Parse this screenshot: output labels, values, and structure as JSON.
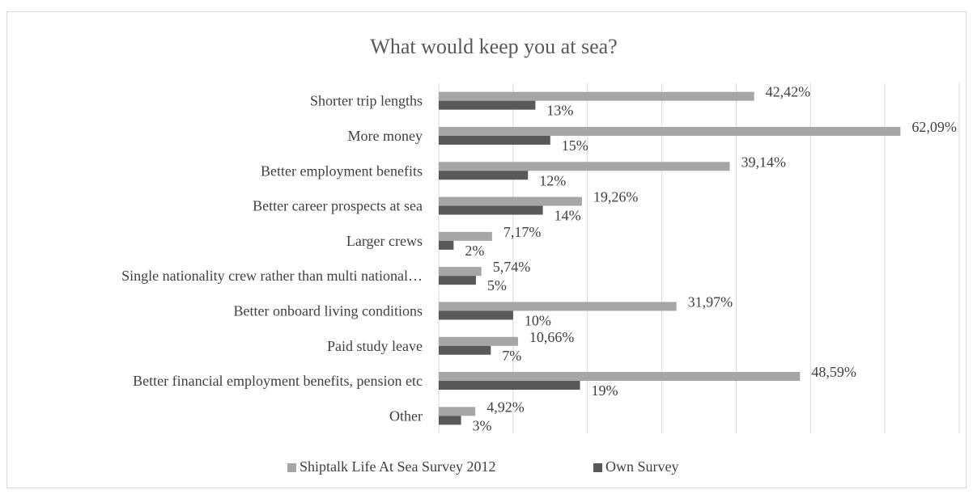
{
  "chart_data": {
    "type": "bar",
    "orientation": "horizontal",
    "title": "What would keep you at sea?",
    "xlabel": "",
    "ylabel": "",
    "xlim": [
      0,
      70
    ],
    "grid": true,
    "legend_position": "bottom",
    "categories": [
      "Shorter trip lengths",
      "More money",
      "Better employment benefits",
      "Better career prospects at sea",
      "Larger crews",
      "Single nationality crew rather than multi national…",
      "Better onboard living conditions",
      "Paid study leave",
      "Better financial employment benefits, pension etc",
      "Other"
    ],
    "series": [
      {
        "name": "Shiptalk Life At Sea Survey 2012",
        "color": "#a6a6a6",
        "values": [
          42.42,
          62.09,
          39.14,
          19.26,
          7.17,
          5.74,
          31.97,
          10.66,
          48.59,
          4.92
        ],
        "labels": [
          "42,42%",
          "62,09%",
          "39,14%",
          "19,26%",
          "7,17%",
          "5,74%",
          "31,97%",
          "10,66%",
          "48,59%",
          "4,92%"
        ]
      },
      {
        "name": "Own Survey",
        "color": "#595959",
        "values": [
          13,
          15,
          12,
          14,
          2,
          5,
          10,
          7,
          19,
          3
        ],
        "labels": [
          "13%",
          "15%",
          "12%",
          "14%",
          "2%",
          "5%",
          "10%",
          "7%",
          "19%",
          "3%"
        ]
      }
    ]
  }
}
